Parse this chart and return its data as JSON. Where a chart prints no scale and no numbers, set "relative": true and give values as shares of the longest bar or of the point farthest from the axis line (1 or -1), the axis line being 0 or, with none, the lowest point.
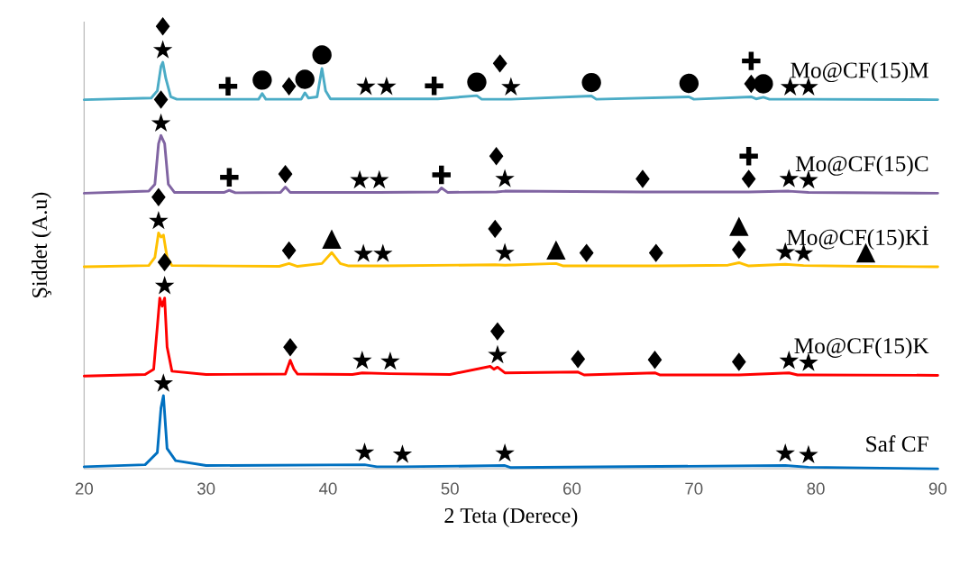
{
  "chart_data": {
    "type": "line",
    "relative": true,
    "xlabel": "2 Teta (Derece)",
    "ylabel": "Şiddet (A.u)",
    "xlim": [
      20,
      90
    ],
    "xticks": [
      20,
      30,
      40,
      50,
      60,
      70,
      80,
      90
    ],
    "series": [
      {
        "name": "Mo@CF(15)M",
        "color": "#4bacc6",
        "x": [
          20,
          25.5,
          26,
          26.3,
          26.45,
          26.7,
          27.1,
          27.6,
          31.8,
          34.3,
          34.6,
          34.9,
          36.8,
          37.8,
          38.1,
          38.4,
          39.1,
          39.5,
          39.8,
          40.2,
          43.1,
          44.8,
          48.7,
          49,
          52.2,
          52.6,
          54.1,
          55.0,
          61.6,
          62,
          69.6,
          70,
          74.7,
          75.1,
          75.7,
          76.2,
          77.9,
          79.4,
          90
        ],
        "values": [
          0.908,
          0.912,
          0.93,
          0.99,
          1.0,
          0.96,
          0.915,
          0.909,
          0.909,
          0.909,
          0.923,
          0.909,
          0.909,
          0.909,
          0.925,
          0.912,
          0.915,
          0.985,
          0.93,
          0.91,
          0.91,
          0.91,
          0.91,
          0.91,
          0.918,
          0.909,
          0.909,
          0.909,
          0.917,
          0.909,
          0.915,
          0.909,
          0.915,
          0.91,
          0.914,
          0.909,
          0.909,
          0.909,
          0.908
        ]
      },
      {
        "name": "Mo@CF(15)C",
        "color": "#8064a2",
        "x": [
          20,
          25.3,
          25.8,
          26.1,
          26.3,
          26.6,
          26.9,
          27.4,
          31.5,
          31.9,
          32.4,
          36.1,
          36.5,
          36.9,
          42.6,
          44.2,
          49,
          49.3,
          49.8,
          53.8,
          54.5,
          65.8,
          74.5,
          77.8,
          79.4,
          90
        ],
        "values": [
          0.678,
          0.683,
          0.7,
          0.8,
          0.82,
          0.8,
          0.7,
          0.68,
          0.68,
          0.685,
          0.679,
          0.68,
          0.693,
          0.68,
          0.68,
          0.68,
          0.681,
          0.691,
          0.68,
          0.681,
          0.683,
          0.681,
          0.681,
          0.683,
          0.68,
          0.678
        ]
      },
      {
        "name": "Mo@CF(15)Kİ",
        "color": "#ffc000",
        "x": [
          20,
          25.3,
          25.8,
          26.1,
          26.3,
          26.5,
          26.8,
          27.2,
          36,
          36.8,
          37.5,
          39.5,
          40.3,
          41,
          41.7,
          42.9,
          44.5,
          53.7,
          54.5,
          58.7,
          59.3,
          61.2,
          66.9,
          72.8,
          73.7,
          74.5,
          77.5,
          79.0,
          84.1,
          90
        ],
        "values": [
          0.497,
          0.5,
          0.52,
          0.58,
          0.57,
          0.575,
          0.52,
          0.5,
          0.498,
          0.505,
          0.498,
          0.505,
          0.532,
          0.505,
          0.499,
          0.499,
          0.499,
          0.502,
          0.501,
          0.505,
          0.499,
          0.499,
          0.499,
          0.501,
          0.507,
          0.499,
          0.503,
          0.5,
          0.498,
          0.497
        ]
      },
      {
        "name": "Mo@CF(15)K",
        "color": "#ff0000",
        "x": [
          20,
          25,
          25.7,
          26,
          26.2,
          26.4,
          26.6,
          26.8,
          27.2,
          30,
          36.5,
          36.9,
          37.2,
          37.5,
          42,
          42.8,
          45.1,
          50,
          53.3,
          53.6,
          53.9,
          54.5,
          60.5,
          61,
          66.8,
          67.2,
          73.7,
          77.8,
          78.5,
          79.4,
          90
        ],
        "values": [
          0.228,
          0.232,
          0.245,
          0.35,
          0.42,
          0.4,
          0.42,
          0.3,
          0.24,
          0.232,
          0.233,
          0.267,
          0.245,
          0.233,
          0.232,
          0.236,
          0.234,
          0.232,
          0.252,
          0.245,
          0.25,
          0.236,
          0.238,
          0.231,
          0.236,
          0.231,
          0.231,
          0.236,
          0.231,
          0.231,
          0.23
        ]
      },
      {
        "name": "Saf CF",
        "color": "#0070c0",
        "x": [
          20,
          25,
          26,
          26.3,
          26.5,
          26.8,
          27.5,
          30,
          43,
          44,
          46.1,
          54.5,
          55,
          77.5,
          79.4,
          90
        ],
        "values": [
          0.005,
          0.01,
          0.04,
          0.15,
          0.18,
          0.05,
          0.02,
          0.008,
          0.01,
          0.005,
          0.005,
          0.008,
          0.003,
          0.008,
          0.004,
          0.0
        ]
      }
    ],
    "annotations": [
      {
        "text": "★",
        "x": 26.45,
        "y": 1.0
      },
      {
        "text": "♦",
        "x": 26.45,
        "y": 1.0
      },
      {
        "text": "✚",
        "x": 31.8,
        "y": 0.909
      },
      {
        "text": "●",
        "x": 34.6,
        "y": 0.923
      },
      {
        "text": "♦",
        "x": 36.8,
        "y": 0.909
      },
      {
        "text": "●",
        "x": 38.1,
        "y": 0.925
      },
      {
        "text": "●",
        "x": 39.5,
        "y": 0.985
      },
      {
        "text": "★",
        "x": 43.1,
        "y": 0.91
      },
      {
        "text": "★",
        "x": 44.8,
        "y": 0.91
      },
      {
        "text": "✚",
        "x": 48.7,
        "y": 0.91
      },
      {
        "text": "●",
        "x": 52.2,
        "y": 0.918
      },
      {
        "text": "★",
        "x": 55.0,
        "y": 0.909
      },
      {
        "text": "♦",
        "x": 54.1,
        "y": 0.909
      },
      {
        "text": "●",
        "x": 61.6,
        "y": 0.917
      },
      {
        "text": "●",
        "x": 69.6,
        "y": 0.915
      },
      {
        "text": "♦",
        "x": 74.7,
        "y": 0.915
      },
      {
        "text": "✚",
        "x": 74.7,
        "y": 0.915
      },
      {
        "text": "●",
        "x": 75.7,
        "y": 0.914
      },
      {
        "text": "★",
        "x": 77.9,
        "y": 0.909
      },
      {
        "text": "★",
        "x": 79.4,
        "y": 0.909
      },
      {
        "text": "★",
        "x": 26.3,
        "y": 0.82
      },
      {
        "text": "♦",
        "x": 26.3,
        "y": 0.82
      },
      {
        "text": "✚",
        "x": 31.9,
        "y": 0.685
      },
      {
        "text": "♦",
        "x": 36.5,
        "y": 0.693
      },
      {
        "text": "★",
        "x": 42.6,
        "y": 0.68
      },
      {
        "text": "★",
        "x": 44.2,
        "y": 0.68
      },
      {
        "text": "✚",
        "x": 49.3,
        "y": 0.691
      },
      {
        "text": "★",
        "x": 54.5,
        "y": 0.683
      },
      {
        "text": "♦",
        "x": 53.8,
        "y": 0.681
      },
      {
        "text": "♦",
        "x": 65.8,
        "y": 0.681
      },
      {
        "text": "♦",
        "x": 74.5,
        "y": 0.681
      },
      {
        "text": "✚",
        "x": 74.5,
        "y": 0.681
      },
      {
        "text": "★",
        "x": 77.8,
        "y": 0.683
      },
      {
        "text": "★",
        "x": 79.4,
        "y": 0.68
      },
      {
        "text": "★",
        "x": 26.1,
        "y": 0.58
      },
      {
        "text": "♦",
        "x": 26.1,
        "y": 0.58
      },
      {
        "text": "♦",
        "x": 36.8,
        "y": 0.505
      },
      {
        "text": "▲",
        "x": 40.3,
        "y": 0.532
      },
      {
        "text": "★",
        "x": 42.9,
        "y": 0.499
      },
      {
        "text": "★",
        "x": 44.5,
        "y": 0.499
      },
      {
        "text": "★",
        "x": 54.5,
        "y": 0.501
      },
      {
        "text": "♦",
        "x": 53.7,
        "y": 0.502
      },
      {
        "text": "▲",
        "x": 58.7,
        "y": 0.505
      },
      {
        "text": "♦",
        "x": 61.2,
        "y": 0.499
      },
      {
        "text": "♦",
        "x": 66.9,
        "y": 0.499
      },
      {
        "text": "♦",
        "x": 73.7,
        "y": 0.507
      },
      {
        "text": "▲",
        "x": 73.7,
        "y": 0.507
      },
      {
        "text": "★",
        "x": 77.5,
        "y": 0.503
      },
      {
        "text": "★",
        "x": 79.0,
        "y": 0.5
      },
      {
        "text": "▲",
        "x": 84.1,
        "y": 0.498
      },
      {
        "text": "★",
        "x": 26.6,
        "y": 0.42
      },
      {
        "text": "♦",
        "x": 26.6,
        "y": 0.42
      },
      {
        "text": "♦",
        "x": 36.9,
        "y": 0.267
      },
      {
        "text": "★",
        "x": 42.8,
        "y": 0.236
      },
      {
        "text": "★",
        "x": 45.1,
        "y": 0.234
      },
      {
        "text": "★",
        "x": 53.9,
        "y": 0.25
      },
      {
        "text": "♦",
        "x": 53.9,
        "y": 0.25
      },
      {
        "text": "♦",
        "x": 60.5,
        "y": 0.238
      },
      {
        "text": "♦",
        "x": 66.8,
        "y": 0.236
      },
      {
        "text": "♦",
        "x": 73.7,
        "y": 0.231
      },
      {
        "text": "★",
        "x": 77.8,
        "y": 0.236
      },
      {
        "text": "★",
        "x": 79.4,
        "y": 0.231
      },
      {
        "text": "★",
        "x": 26.5,
        "y": 0.18
      },
      {
        "text": "★",
        "x": 43,
        "y": 0.01
      },
      {
        "text": "★",
        "x": 46.1,
        "y": 0.005
      },
      {
        "text": "★",
        "x": 54.5,
        "y": 0.008
      },
      {
        "text": "★",
        "x": 77.5,
        "y": 0.008
      },
      {
        "text": "★",
        "x": 79.4,
        "y": 0.004
      }
    ]
  }
}
